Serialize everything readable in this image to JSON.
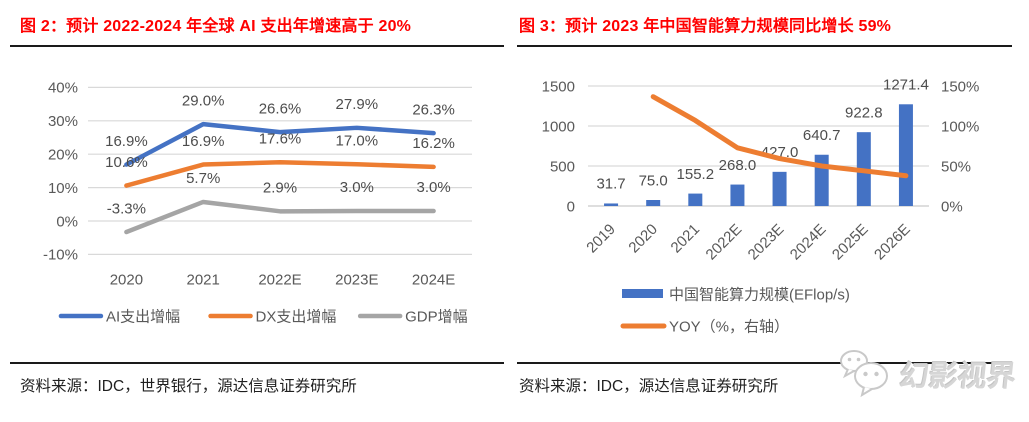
{
  "panels": {
    "left": {
      "source": "资料来源：IDC，世界银行，源达信息证券研究所"
    },
    "right": {
      "source": "资料来源：IDC，源达信息证券研究所"
    }
  },
  "watermark": {
    "text": "幻影视界",
    "icon": "wechat-chat-bubbles"
  },
  "colors": {
    "title_red": "#FF0000",
    "blue": "#4472C4",
    "orange": "#ED7D31",
    "gray": "#A5A5A5",
    "gridline": "#D9D9D9",
    "axis_line": "#C9C9C9",
    "axis_text": "#595959",
    "label_text": "#4d4d4d"
  },
  "chart_data": [
    {
      "type": "line",
      "title": "图 2：预计 2022-2024 年全球 AI 支出年增速高于 20%",
      "categories": [
        "2020",
        "2021",
        "2022E",
        "2023E",
        "2024E"
      ],
      "series": [
        {
          "name": "AI支出增幅",
          "color_key": "blue",
          "values": [
            16.9,
            29.0,
            26.6,
            27.9,
            26.3
          ],
          "labels": [
            "16.9%",
            "29.0%",
            "26.6%",
            "27.9%",
            "26.3%"
          ]
        },
        {
          "name": "DX支出增幅",
          "color_key": "orange",
          "values": [
            10.6,
            16.9,
            17.6,
            17.0,
            16.2
          ],
          "labels": [
            "10.6%",
            "16.9%",
            "17.6%",
            "17.0%",
            "16.2%"
          ]
        },
        {
          "name": "GDP增幅",
          "color_key": "gray",
          "values": [
            -3.3,
            5.7,
            2.9,
            3.0,
            3.0
          ],
          "labels": [
            "-3.3%",
            "5.7%",
            "2.9%",
            "3.0%",
            "3.0%"
          ]
        }
      ],
      "ylim": [
        -10,
        40
      ],
      "y_ticks": {
        "labels": [
          "40%",
          "30%",
          "20%",
          "10%",
          "0%",
          "-10%"
        ],
        "values": [
          40,
          30,
          20,
          10,
          0,
          -10
        ]
      },
      "grid": true,
      "legend_position": "bottom"
    },
    {
      "type": "bar+line",
      "title": "图 3：预计 2023 年中国智能算力规模同比增长 59%",
      "categories": [
        "2019",
        "2020",
        "2021",
        "2022E",
        "2023E",
        "2024E",
        "2025E",
        "2026E"
      ],
      "bar_series": {
        "name": "中国智能算力规模(EFlop/s)",
        "axis": "left",
        "color_key": "blue",
        "values": [
          31.7,
          75.0,
          155.2,
          268.0,
          427.0,
          640.7,
          922.8,
          1271.4
        ],
        "labels": [
          "31.7",
          "75.0",
          "155.2",
          "268.0",
          "427.0",
          "640.7",
          "922.8",
          "1271.4"
        ]
      },
      "line_series": {
        "name": "YOY（%，右轴）",
        "axis": "right",
        "color_key": "orange",
        "values": [
          null,
          136.6,
          106.9,
          72.7,
          59.3,
          50.0,
          44.0,
          37.8
        ]
      },
      "left_axis": {
        "labels": [
          "0",
          "500",
          "1000",
          "1500"
        ],
        "values": [
          0,
          500,
          1000,
          1500
        ],
        "ylim": [
          0,
          1500
        ]
      },
      "right_axis": {
        "labels": [
          "0%",
          "50%",
          "100%",
          "150%"
        ],
        "values": [
          0,
          50,
          100,
          150
        ],
        "ylim": [
          0,
          150
        ]
      },
      "grid": true,
      "legend_position": "bottom"
    }
  ]
}
